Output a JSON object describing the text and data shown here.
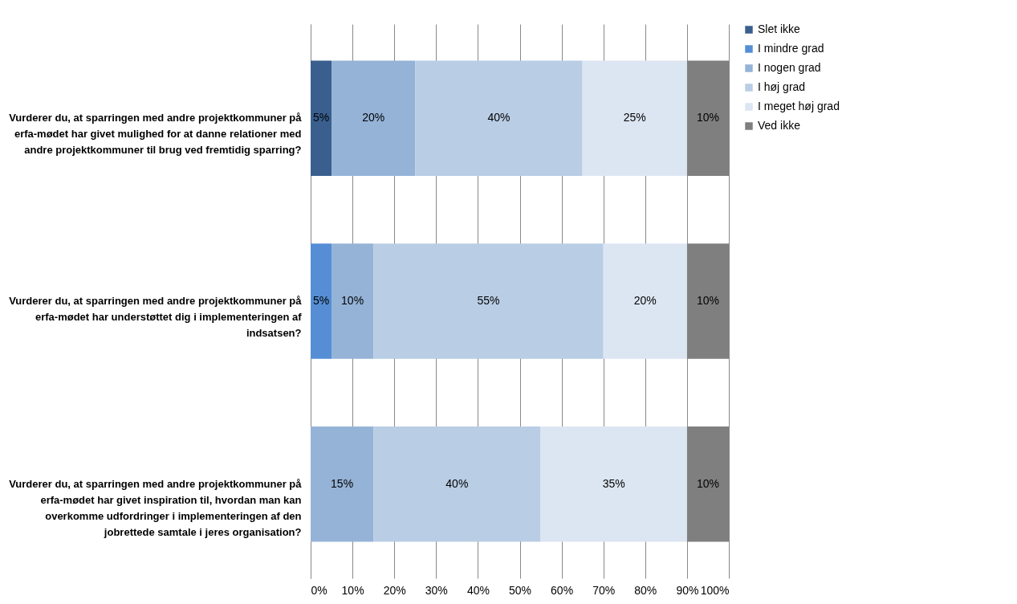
{
  "chart_data": {
    "type": "bar",
    "orientation": "horizontal",
    "stacked": true,
    "categories": [
      "Vurderer du, at sparringen med andre projektkommuner på erfa-mødet har givet mulighed for at danne relationer med andre projektkommuner til brug ved fremtidig sparring?",
      "Vurderer du, at sparringen med andre projektkommuner på erfa-mødet har understøttet dig i implementeringen af indsatsen?",
      "Vurderer du, at sparringen med andre projektkommuner på erfa-mødet har givet inspiration til, hvordan man kan overkomme udfordringer i implementeringen af den jobrettede samtale i jeres organisation?"
    ],
    "series": [
      {
        "name": "Slet ikke",
        "color": "#3a5f8f",
        "values": [
          5,
          null,
          null
        ],
        "value_labels": [
          "5%",
          null,
          null
        ]
      },
      {
        "name": "I mindre grad",
        "color": "#558ed5",
        "values": [
          null,
          5,
          null
        ],
        "value_labels": [
          null,
          "5%",
          null
        ]
      },
      {
        "name": "I nogen grad",
        "color": "#95b3d7",
        "values": [
          20,
          10,
          15
        ],
        "value_labels": [
          "20%",
          "10%",
          "15%"
        ]
      },
      {
        "name": "I høj grad",
        "color": "#b9cde5",
        "values": [
          40,
          55,
          40
        ],
        "value_labels": [
          "40%",
          "55%",
          "40%"
        ]
      },
      {
        "name": "I meget høj grad",
        "color": "#dce6f2",
        "values": [
          25,
          20,
          35
        ],
        "value_labels": [
          "25%",
          "20%",
          "35%"
        ]
      },
      {
        "name": "Ved ikke",
        "color": "#7f7f7f",
        "values": [
          10,
          10,
          10
        ],
        "value_labels": [
          "10%",
          "10%",
          "10%"
        ]
      }
    ],
    "xlim": [
      0,
      100
    ],
    "xticks": [
      {
        "value": 0,
        "label": "0%"
      },
      {
        "value": 10,
        "label": "10%"
      },
      {
        "value": 20,
        "label": "20%"
      },
      {
        "value": 30,
        "label": "30%"
      },
      {
        "value": 40,
        "label": "40%"
      },
      {
        "value": 50,
        "label": "50%"
      },
      {
        "value": 60,
        "label": "60%"
      },
      {
        "value": 70,
        "label": "70%"
      },
      {
        "value": 80,
        "label": "80%"
      },
      {
        "value": 90,
        "label": "90%"
      },
      {
        "value": 100,
        "label": "100%"
      }
    ],
    "grid": "x",
    "legend": "right"
  }
}
